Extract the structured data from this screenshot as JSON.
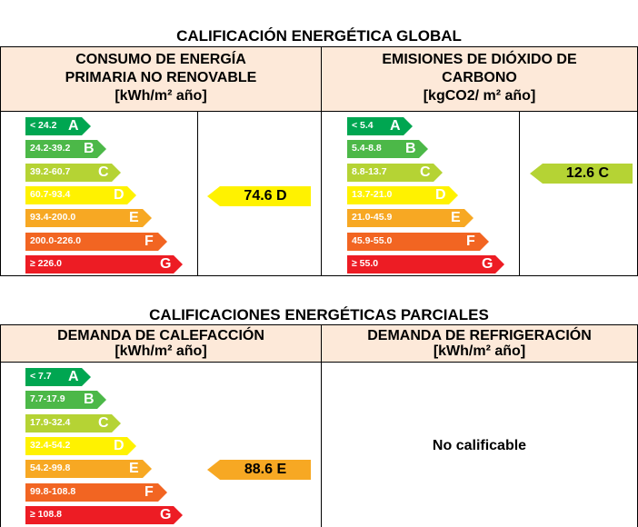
{
  "global": {
    "title": "CALIFICACIÓN ENERGÉTICA GLOBAL",
    "left": {
      "line1": "CONSUMO DE ENERGÍA",
      "line2": "PRIMARIA NO RENOVABLE",
      "unit": "[kWh/m² año]",
      "scale": [
        {
          "range": "< 24.2",
          "letter": "A",
          "color": "#00a651"
        },
        {
          "range": "24.2-39.2",
          "letter": "B",
          "color": "#4cb848"
        },
        {
          "range": "39.2-60.7",
          "letter": "C",
          "color": "#b5d334"
        },
        {
          "range": "60.7-93.4",
          "letter": "D",
          "color": "#fff200"
        },
        {
          "range": "93.4-200.0",
          "letter": "E",
          "color": "#f7a823"
        },
        {
          "range": "200.0-226.0",
          "letter": "F",
          "color": "#f26522"
        },
        {
          "range": "≥ 226.0",
          "letter": "G",
          "color": "#ed1c24"
        }
      ],
      "indicator": {
        "text": "74.6 D",
        "color": "#fff200"
      }
    },
    "right": {
      "line1": "EMISIONES DE DIÓXIDO DE",
      "line2": "CARBONO",
      "unit": "[kgCO2/ m² año]",
      "scale": [
        {
          "range": "< 5.4",
          "letter": "A",
          "color": "#00a651"
        },
        {
          "range": "5.4-8.8",
          "letter": "B",
          "color": "#4cb848"
        },
        {
          "range": "8.8-13.7",
          "letter": "C",
          "color": "#b5d334"
        },
        {
          "range": "13.7-21.0",
          "letter": "D",
          "color": "#fff200"
        },
        {
          "range": "21.0-45.9",
          "letter": "E",
          "color": "#f7a823"
        },
        {
          "range": "45.9-55.0",
          "letter": "F",
          "color": "#f26522"
        },
        {
          "range": "≥ 55.0",
          "letter": "G",
          "color": "#ed1c24"
        }
      ],
      "indicator": {
        "text": "12.6 C",
        "color": "#b5d334"
      }
    }
  },
  "parcial": {
    "title": "CALIFICACIONES ENERGÉTICAS PARCIALES",
    "left": {
      "line1": "DEMANDA DE CALEFACCIÓN",
      "unit": "[kWh/m² año]",
      "scale": [
        {
          "range": "< 7.7",
          "letter": "A",
          "color": "#00a651"
        },
        {
          "range": "7.7-17.9",
          "letter": "B",
          "color": "#4cb848"
        },
        {
          "range": "17.9-32.4",
          "letter": "C",
          "color": "#b5d334"
        },
        {
          "range": "32.4-54.2",
          "letter": "D",
          "color": "#fff200"
        },
        {
          "range": "54.2-99.8",
          "letter": "E",
          "color": "#f7a823"
        },
        {
          "range": "99.8-108.8",
          "letter": "F",
          "color": "#f26522"
        },
        {
          "range": "≥ 108.8",
          "letter": "G",
          "color": "#ed1c24"
        }
      ],
      "indicator": {
        "text": "88.6 E",
        "color": "#f7a823"
      }
    },
    "right": {
      "line1": "DEMANDA DE REFRIGERACIÓN",
      "unit": "[kWh/m² año]",
      "no_calificable": "No calificable"
    }
  }
}
